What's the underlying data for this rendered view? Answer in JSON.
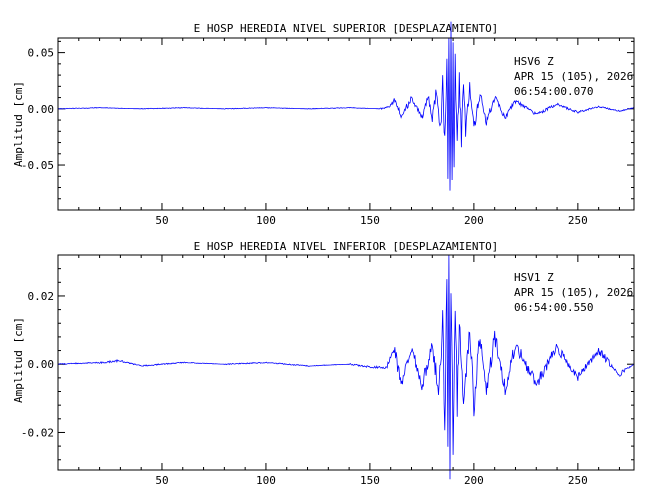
{
  "chart_data": [
    {
      "type": "line",
      "title": "E HOSP HEREDIA NIVEL SUPERIOR [DESPLAZAMIENTO]",
      "ylabel": "Amplitud [cm]",
      "xlabel": "",
      "xlim": [
        0,
        277
      ],
      "ylim": [
        -0.09,
        0.063
      ],
      "xticks": [
        50,
        100,
        150,
        200,
        250
      ],
      "xtick_labels": [
        "50",
        "100",
        "150",
        "200",
        "250"
      ],
      "yticks": [
        0.05,
        0.0,
        -0.05
      ],
      "ytick_labels": [
        "0.05",
        "0.00",
        "-0.05"
      ],
      "annotation": [
        "HSV6   Z",
        "APR 15 (105), 2026",
        "06:54:00.070"
      ],
      "series": [
        {
          "color": "#0000ff",
          "x": [
            0,
            20,
            40,
            60,
            80,
            100,
            120,
            140,
            155,
            160,
            162,
            165,
            170,
            175,
            178,
            180,
            182,
            184,
            185,
            186,
            187,
            187.5,
            188,
            188.5,
            189,
            189.5,
            190,
            190.5,
            191,
            192,
            193,
            194,
            195,
            196,
            198,
            200,
            203,
            206,
            210,
            215,
            220,
            230,
            240,
            250,
            260,
            270,
            277
          ],
          "y": [
            0.0,
            0.001,
            0.0,
            0.001,
            0.0,
            0.001,
            0.0,
            0.001,
            0.0,
            0.002,
            0.008,
            -0.006,
            0.009,
            -0.007,
            0.012,
            -0.01,
            0.018,
            -0.02,
            0.03,
            -0.035,
            0.045,
            -0.05,
            0.055,
            -0.088,
            0.062,
            -0.07,
            0.05,
            -0.06,
            0.04,
            -0.04,
            0.03,
            -0.03,
            0.025,
            -0.02,
            0.02,
            -0.018,
            0.014,
            -0.012,
            0.01,
            -0.008,
            0.007,
            -0.005,
            0.004,
            -0.003,
            0.002,
            -0.002,
            0.001
          ]
        }
      ]
    },
    {
      "type": "line",
      "title": "E HOSP HEREDIA NIVEL INFERIOR [DESPLAZAMIENTO]",
      "ylabel": "Amplitud [cm]",
      "xlabel": "",
      "xlim": [
        0,
        277
      ],
      "ylim": [
        -0.031,
        0.032
      ],
      "xticks": [
        50,
        100,
        150,
        200,
        250
      ],
      "xtick_labels": [
        "50",
        "100",
        "150",
        "200",
        "250"
      ],
      "yticks": [
        0.02,
        0.0,
        -0.02
      ],
      "ytick_labels": [
        "0.02",
        "0.00",
        "-0.02"
      ],
      "annotation": [
        "HSV1   Z",
        "APR 15 (105), 2026",
        "06:54:00.550"
      ],
      "series": [
        {
          "color": "#0000ff",
          "x": [
            0,
            20,
            30,
            40,
            60,
            80,
            100,
            120,
            140,
            150,
            158,
            160,
            162,
            165,
            170,
            175,
            180,
            183,
            185,
            186,
            187,
            187.5,
            188,
            188.5,
            189,
            190,
            191,
            192,
            193,
            195,
            198,
            200,
            203,
            206,
            210,
            215,
            220,
            230,
            240,
            250,
            260,
            270,
            277
          ],
          "y": [
            0.0,
            0.0005,
            0.001,
            -0.0005,
            0.0005,
            0.0,
            0.0005,
            -0.0005,
            0.0,
            -0.0008,
            -0.001,
            0.002,
            0.004,
            -0.006,
            0.005,
            -0.007,
            0.007,
            -0.01,
            0.012,
            -0.02,
            0.03,
            -0.029,
            0.025,
            -0.028,
            0.02,
            -0.02,
            0.022,
            -0.012,
            0.012,
            -0.01,
            0.01,
            -0.012,
            0.009,
            -0.008,
            0.008,
            -0.007,
            0.006,
            -0.006,
            0.005,
            -0.004,
            0.004,
            -0.003,
            0.0
          ]
        }
      ]
    }
  ]
}
